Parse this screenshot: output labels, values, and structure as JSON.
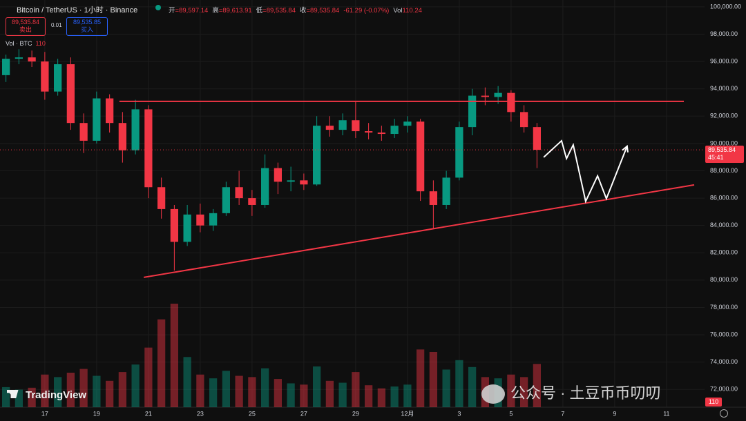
{
  "chart_data": {
    "type": "candlestick",
    "title": "Bitcoin / TetherUS · 1小时 · Binance",
    "header": [
      {
        "label": "开",
        "value": "=89,597.14"
      },
      {
        "label": "高",
        "value": "=89,613.91"
      },
      {
        "label": "低",
        "value": "=89,535.84"
      },
      {
        "label": "收",
        "value": "=89,535.84"
      }
    ],
    "change": "-61.29 (-0.07%)",
    "header_volume": {
      "label": "Vol",
      "value": "110.24"
    },
    "sell": {
      "price": "89,535.84",
      "label": "卖出"
    },
    "spread": "0.01",
    "buy": {
      "price": "89,535.85",
      "label": "买入"
    },
    "volume_legend": {
      "label": "Vol · BTC",
      "value": "110"
    },
    "volume_badge": "110",
    "current_price": {
      "value": 89535.84,
      "label": "89,535.84"
    },
    "countdown": "45:41",
    "logo": "TradingView",
    "watermark": "公众号 · 土豆币币叨叨",
    "up_color": "#089981",
    "down_color": "#f23645",
    "grid": true,
    "xlim": [
      15.27,
      42.47
    ],
    "ylim": [
      70700,
      100500
    ],
    "xticks": [
      17,
      19,
      21,
      23,
      25,
      27,
      29,
      {
        "value": 31,
        "label": "12月"
      },
      {
        "value": 33,
        "label": "3"
      },
      {
        "value": 35,
        "label": "5"
      },
      {
        "value": 37,
        "label": "7"
      },
      {
        "value": 39,
        "label": "9"
      },
      {
        "value": 41,
        "label": "11"
      }
    ],
    "yticks": [
      {
        "value": 72000,
        "label": "72,000.00"
      },
      {
        "value": 74000,
        "label": "74,000.00"
      },
      {
        "value": 76000,
        "label": "76,000.00"
      },
      {
        "value": 78000,
        "label": "78,000.00"
      },
      {
        "value": 80000,
        "label": "80,000.00"
      },
      {
        "value": 82000,
        "label": "82,000.00"
      },
      {
        "value": 84000,
        "label": "84,000.00"
      },
      {
        "value": 86000,
        "label": "86,000.00"
      },
      {
        "value": 88000,
        "label": "88,000.00"
      },
      {
        "value": 90000,
        "label": "90,000.00"
      },
      {
        "value": 92000,
        "label": "92,000.00"
      },
      {
        "value": 94000,
        "label": "94,000.00"
      },
      {
        "value": 96000,
        "label": "96,000.00"
      },
      {
        "value": 98000,
        "label": "98,000.00"
      },
      {
        "value": 100000,
        "label": "100,000.00"
      }
    ],
    "x": [
      15.5,
      16,
      16.5,
      17,
      17.5,
      18,
      18.5,
      19,
      19.5,
      20,
      20.5,
      21,
      21.5,
      22,
      22.5,
      23,
      23.5,
      24,
      24.5,
      25,
      25.5,
      26,
      26.5,
      27,
      27.5,
      28,
      28.5,
      29,
      29.5,
      30,
      30.5,
      31,
      31.5,
      32,
      32.5,
      33,
      33.5,
      34,
      34.5,
      35,
      35.5,
      36
    ],
    "open": [
      95000,
      96200,
      96300,
      96000,
      93800,
      95800,
      91500,
      90200,
      93300,
      91500,
      89500,
      92500,
      86800,
      85200,
      82800,
      84800,
      84000,
      84900,
      86800,
      86000,
      85500,
      88200,
      87200,
      87300,
      87000,
      91300,
      91000,
      91700,
      90900,
      90800,
      90700,
      91300,
      91600,
      86500,
      85500,
      87500,
      91200,
      93500,
      93400,
      93700,
      92300,
      91200
    ],
    "high": [
      96500,
      96900,
      96800,
      96700,
      96200,
      96300,
      92200,
      93800,
      93600,
      92300,
      93200,
      92800,
      87500,
      85500,
      85500,
      85600,
      85200,
      87200,
      88000,
      86600,
      89200,
      88600,
      88300,
      87800,
      92000,
      92000,
      92200,
      93100,
      91500,
      91300,
      91800,
      92000,
      91800,
      87300,
      88000,
      91600,
      94000,
      94100,
      94200,
      93900,
      92800,
      91500
    ],
    "low": [
      94500,
      95800,
      95600,
      93200,
      93500,
      91000,
      89300,
      90000,
      90800,
      88600,
      89200,
      86000,
      84500,
      80700,
      82500,
      83500,
      83600,
      84700,
      85500,
      84700,
      85300,
      86300,
      86500,
      86600,
      86900,
      90500,
      90600,
      90400,
      90300,
      90200,
      90400,
      90800,
      85800,
      83800,
      85200,
      87300,
      90600,
      92800,
      92900,
      91600,
      90800,
      88200
    ],
    "close": [
      96200,
      96300,
      96000,
      93800,
      95800,
      91500,
      90200,
      93300,
      91500,
      89500,
      92500,
      86800,
      85200,
      82800,
      84800,
      84000,
      84900,
      86800,
      86000,
      85500,
      88200,
      87200,
      87300,
      87000,
      91300,
      91000,
      91700,
      90900,
      90800,
      90700,
      91300,
      91600,
      86500,
      85500,
      87500,
      91200,
      93500,
      93400,
      93700,
      92300,
      91200,
      89535.84
    ],
    "volume": [
      3200,
      2800,
      3100,
      5200,
      4800,
      5500,
      6100,
      5000,
      4200,
      5600,
      6800,
      9500,
      14000,
      16500,
      8000,
      5200,
      4600,
      5800,
      5000,
      4800,
      6200,
      4500,
      3800,
      3600,
      6500,
      4200,
      3900,
      5600,
      3500,
      3000,
      3300,
      3600,
      9200,
      8800,
      6000,
      7500,
      6400,
      4800,
      4600,
      5200,
      4800,
      6900
    ],
    "annotations": [
      {
        "color": "#f23645",
        "x": [
          19.88,
          41.67
        ],
        "y": [
          93080,
          93080
        ]
      },
      {
        "color": "#f23645",
        "x": [
          20.82,
          42.07
        ],
        "y": [
          80200,
          86970
        ]
      },
      {
        "color": "#ffffff",
        "arrow": true,
        "x": [
          36.26,
          36.95,
          37.14,
          37.4,
          37.88,
          38.34,
          38.68,
          39.48
        ],
        "y": [
          88990,
          90200,
          88890,
          89900,
          85760,
          87630,
          85960,
          89800
        ]
      }
    ]
  }
}
